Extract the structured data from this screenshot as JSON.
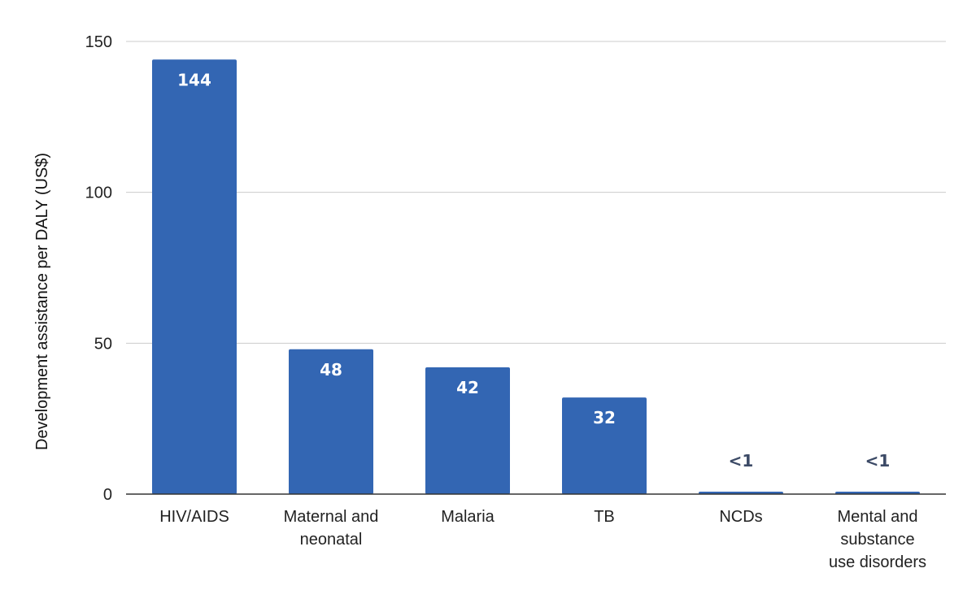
{
  "chart_data": {
    "type": "bar",
    "title": "",
    "xlabel": "",
    "ylabel": "Development assistance per DALY (US$)",
    "categories": [
      [
        "HIV/AIDS"
      ],
      [
        "Maternal and",
        "neonatal"
      ],
      [
        "Malaria"
      ],
      [
        "TB"
      ],
      [
        "NCDs"
      ],
      [
        "Mental and",
        "substance",
        "use disorders"
      ]
    ],
    "values": [
      144,
      48,
      42,
      32,
      0.8,
      0.8
    ],
    "data_labels": [
      "144",
      "48",
      "42",
      "32",
      "<1",
      "<1"
    ],
    "ylim": [
      0,
      150
    ],
    "yticks": [
      0,
      50,
      100,
      150
    ],
    "grid": true,
    "legend": "none",
    "colors": {
      "bar": "#3366b3",
      "label_inside": "#ffffff",
      "label_outside": "#3c4a66",
      "grid": "#cccccc",
      "axis": "#333333"
    }
  }
}
